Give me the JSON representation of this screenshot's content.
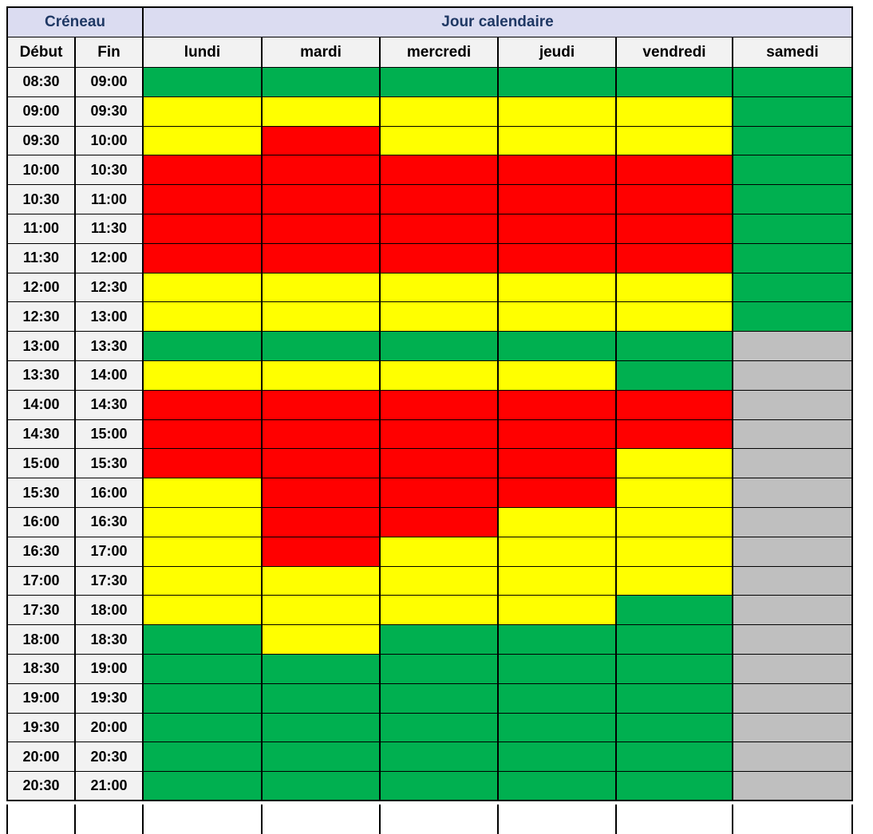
{
  "table": {
    "header_group": {
      "creneau": "Créneau",
      "jour": "Jour calendaire"
    },
    "columns": [
      "Début",
      "Fin",
      "lundi",
      "mardi",
      "mercredi",
      "jeudi",
      "vendredi",
      "samedi"
    ],
    "colors": {
      "green": "#00B050",
      "yellow": "#FFFF00",
      "red": "#FF0000",
      "gray": "#BFBFBF",
      "header_bg": "#DBDCF1",
      "cell_bg": "#F2F2F2",
      "header_text": "#1F3864"
    },
    "rows": [
      {
        "debut": "08:30",
        "fin": "09:00",
        "cells": [
          "green",
          "green",
          "green",
          "green",
          "green",
          "green"
        ]
      },
      {
        "debut": "09:00",
        "fin": "09:30",
        "cells": [
          "yellow",
          "yellow",
          "yellow",
          "yellow",
          "yellow",
          "green"
        ]
      },
      {
        "debut": "09:30",
        "fin": "10:00",
        "cells": [
          "yellow",
          "red",
          "yellow",
          "yellow",
          "yellow",
          "green"
        ]
      },
      {
        "debut": "10:00",
        "fin": "10:30",
        "cells": [
          "red",
          "red",
          "red",
          "red",
          "red",
          "green"
        ]
      },
      {
        "debut": "10:30",
        "fin": "11:00",
        "cells": [
          "red",
          "red",
          "red",
          "red",
          "red",
          "green"
        ]
      },
      {
        "debut": "11:00",
        "fin": "11:30",
        "cells": [
          "red",
          "red",
          "red",
          "red",
          "red",
          "green"
        ]
      },
      {
        "debut": "11:30",
        "fin": "12:00",
        "cells": [
          "red",
          "red",
          "red",
          "red",
          "red",
          "green"
        ]
      },
      {
        "debut": "12:00",
        "fin": "12:30",
        "cells": [
          "yellow",
          "yellow",
          "yellow",
          "yellow",
          "yellow",
          "green"
        ]
      },
      {
        "debut": "12:30",
        "fin": "13:00",
        "cells": [
          "yellow",
          "yellow",
          "yellow",
          "yellow",
          "yellow",
          "green"
        ]
      },
      {
        "debut": "13:00",
        "fin": "13:30",
        "cells": [
          "green",
          "green",
          "green",
          "green",
          "green",
          "gray"
        ]
      },
      {
        "debut": "13:30",
        "fin": "14:00",
        "cells": [
          "yellow",
          "yellow",
          "yellow",
          "yellow",
          "green",
          "gray"
        ]
      },
      {
        "debut": "14:00",
        "fin": "14:30",
        "cells": [
          "red",
          "red",
          "red",
          "red",
          "red",
          "gray"
        ]
      },
      {
        "debut": "14:30",
        "fin": "15:00",
        "cells": [
          "red",
          "red",
          "red",
          "red",
          "red",
          "gray"
        ]
      },
      {
        "debut": "15:00",
        "fin": "15:30",
        "cells": [
          "red",
          "red",
          "red",
          "red",
          "yellow",
          "gray"
        ]
      },
      {
        "debut": "15:30",
        "fin": "16:00",
        "cells": [
          "yellow",
          "red",
          "red",
          "red",
          "yellow",
          "gray"
        ]
      },
      {
        "debut": "16:00",
        "fin": "16:30",
        "cells": [
          "yellow",
          "red",
          "red",
          "yellow",
          "yellow",
          "gray"
        ]
      },
      {
        "debut": "16:30",
        "fin": "17:00",
        "cells": [
          "yellow",
          "red",
          "yellow",
          "yellow",
          "yellow",
          "gray"
        ]
      },
      {
        "debut": "17:00",
        "fin": "17:30",
        "cells": [
          "yellow",
          "yellow",
          "yellow",
          "yellow",
          "yellow",
          "gray"
        ]
      },
      {
        "debut": "17:30",
        "fin": "18:00",
        "cells": [
          "yellow",
          "yellow",
          "yellow",
          "yellow",
          "green",
          "gray"
        ]
      },
      {
        "debut": "18:00",
        "fin": "18:30",
        "cells": [
          "green",
          "yellow",
          "green",
          "green",
          "green",
          "gray"
        ]
      },
      {
        "debut": "18:30",
        "fin": "19:00",
        "cells": [
          "green",
          "green",
          "green",
          "green",
          "green",
          "gray"
        ]
      },
      {
        "debut": "19:00",
        "fin": "19:30",
        "cells": [
          "green",
          "green",
          "green",
          "green",
          "green",
          "gray"
        ]
      },
      {
        "debut": "19:30",
        "fin": "20:00",
        "cells": [
          "green",
          "green",
          "green",
          "green",
          "green",
          "gray"
        ]
      },
      {
        "debut": "20:00",
        "fin": "20:30",
        "cells": [
          "green",
          "green",
          "green",
          "green",
          "green",
          "gray"
        ]
      },
      {
        "debut": "20:30",
        "fin": "21:00",
        "cells": [
          "green",
          "green",
          "green",
          "green",
          "green",
          "gray"
        ]
      }
    ]
  }
}
